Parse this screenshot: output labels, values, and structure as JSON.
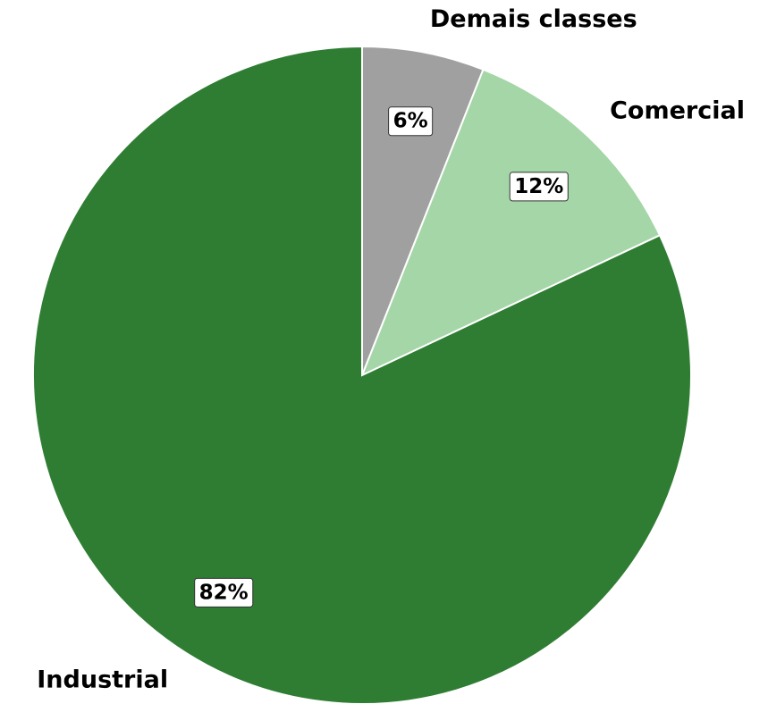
{
  "chart_data": {
    "type": "pie",
    "categories": [
      "Demais classes",
      "Comercial",
      "Industrial"
    ],
    "values": [
      6,
      12,
      82
    ],
    "value_labels": [
      "6%",
      "12%",
      "82%"
    ],
    "colors": [
      "#a0a0a0",
      "#a5d6a7",
      "#2e7d32"
    ]
  }
}
